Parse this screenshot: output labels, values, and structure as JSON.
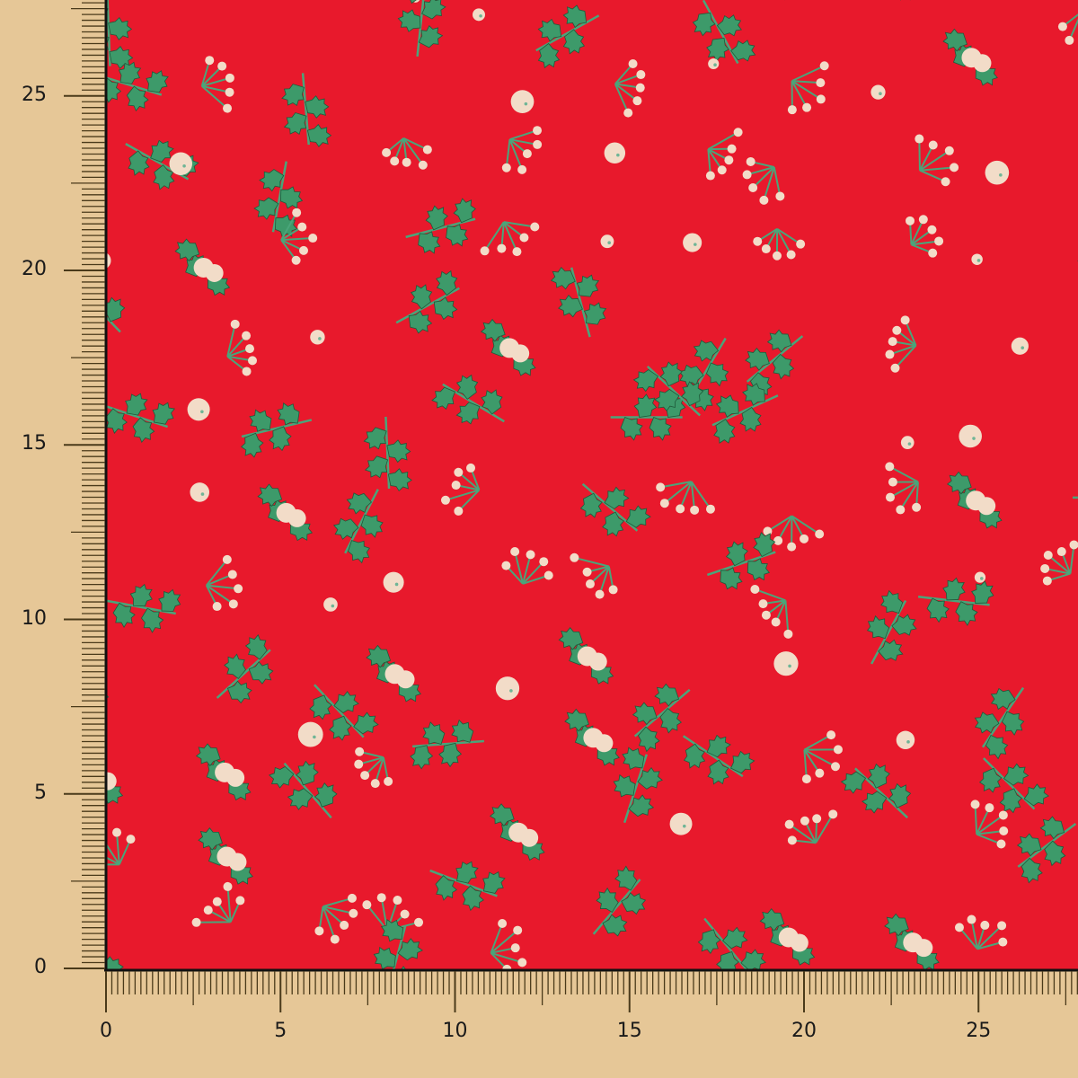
{
  "colors": {
    "background": "#e6c797",
    "fabric": "#e8192c",
    "leaf": "#3d9a6a",
    "berry": "#f2dcc8",
    "ruler_ink": "#4a3a1a"
  },
  "ruler": {
    "unit_ticks_per_label": 5,
    "x_labels": [
      "0",
      "5",
      "10",
      "15",
      "20",
      "25"
    ],
    "y_labels": [
      "0",
      "5",
      "10",
      "15",
      "20",
      "25"
    ]
  },
  "fabric": {
    "pattern": "holly and berries on red"
  }
}
